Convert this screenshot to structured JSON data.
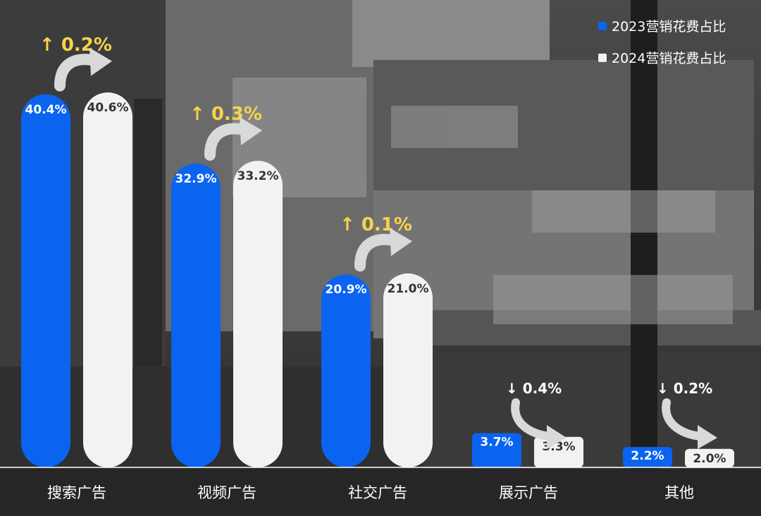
{
  "colors": {
    "series_2023": "#0A64F0",
    "series_2024": "#F2F2F2",
    "increase": "#F8D24A",
    "decrease": "#FFFFFF",
    "arrow": "#D9D9D9",
    "axis": "#FFFFFF"
  },
  "chart_data": {
    "type": "bar",
    "title": "",
    "xlabel": "",
    "ylabel": "",
    "ylim": [
      0,
      45
    ],
    "grid": false,
    "legend_position": "top-right",
    "categories": [
      "搜索广告",
      "视频广告",
      "社交广告",
      "展示广告",
      "其他"
    ],
    "series": [
      {
        "name": "2023营销花费占比",
        "values": [
          40.4,
          32.9,
          20.9,
          3.7,
          2.2
        ],
        "labels": [
          "40.4%",
          "32.9%",
          "20.9%",
          "3.7%",
          "2.2%"
        ]
      },
      {
        "name": "2024营销花费占比",
        "values": [
          40.6,
          33.2,
          21.0,
          3.3,
          2.0
        ],
        "labels": [
          "40.6%",
          "33.2%",
          "21.0%",
          "3.3%",
          "2.0%"
        ]
      }
    ],
    "changes": [
      {
        "direction": "up",
        "text": "↑ 0.2%"
      },
      {
        "direction": "up",
        "text": "↑ 0.3%"
      },
      {
        "direction": "up",
        "text": "↑ 0.1%"
      },
      {
        "direction": "down",
        "text": "↓ 0.4%"
      },
      {
        "direction": "down",
        "text": "↓ 0.2%"
      }
    ]
  }
}
